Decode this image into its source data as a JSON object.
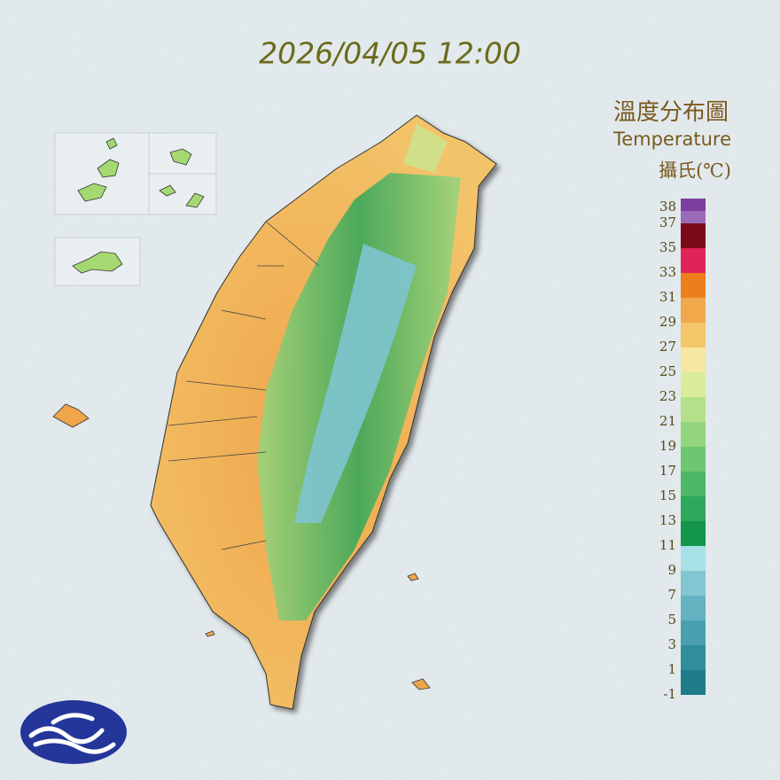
{
  "header": {
    "timestamp": "2026/04/05 12:00"
  },
  "legend": {
    "title": "溫度分布圖",
    "subtitle": "Temperature",
    "unit": "攝氏(℃)",
    "labels": [
      38,
      37,
      35,
      33,
      31,
      29,
      27,
      25,
      23,
      21,
      19,
      17,
      15,
      13,
      11,
      9,
      7,
      5,
      3,
      1,
      -1
    ],
    "colors": [
      "#7b3fa0",
      "#9b6ab8",
      "#7a0a18",
      "#e0245a",
      "#ec7f1c",
      "#f0a84a",
      "#f5c56a",
      "#f5e6a0",
      "#d8ec9a",
      "#b5e08a",
      "#93d57e",
      "#6fc672",
      "#4db866",
      "#2ea85a",
      "#13954a",
      "#a8e0e8",
      "#82c6d2",
      "#64b3c2",
      "#4aa0b0",
      "#2f8d9c",
      "#1e7b8a"
    ]
  }
}
